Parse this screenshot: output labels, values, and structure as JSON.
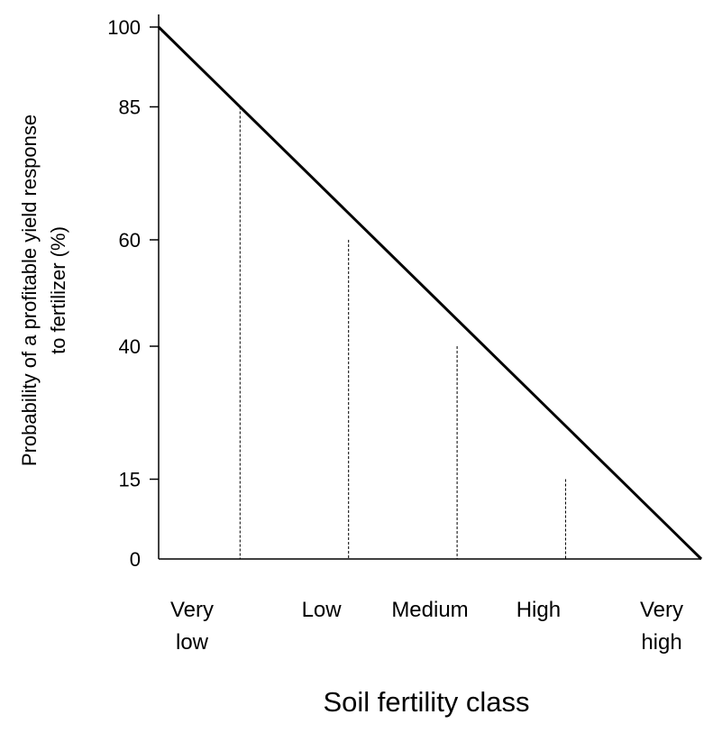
{
  "chart_data": {
    "type": "line",
    "title": "",
    "xlabel": "Soil fertility class",
    "ylabel_lines": [
      "Probability of a profitable yield response",
      "to fertilizer (%)"
    ],
    "ylim": [
      0,
      100
    ],
    "y_ticks": [
      0,
      15,
      40,
      60,
      85,
      100
    ],
    "categories": [
      {
        "lines": [
          "Very",
          "low"
        ]
      },
      {
        "lines": [
          "Low"
        ]
      },
      {
        "lines": [
          "Medium"
        ]
      },
      {
        "lines": [
          "High"
        ]
      },
      {
        "lines": [
          "Very",
          "high"
        ]
      }
    ],
    "series": [
      {
        "points": [
          [
            0,
            100
          ],
          [
            5,
            0
          ]
        ]
      }
    ],
    "class_boundaries": [
      {
        "x": 0.75,
        "y": 85
      },
      {
        "x": 1.75,
        "y": 60
      },
      {
        "x": 2.75,
        "y": 40
      },
      {
        "x": 3.75,
        "y": 15
      }
    ],
    "grid": false,
    "legend": "none",
    "colors": {
      "line": "#000000",
      "axis": "#000000"
    }
  }
}
